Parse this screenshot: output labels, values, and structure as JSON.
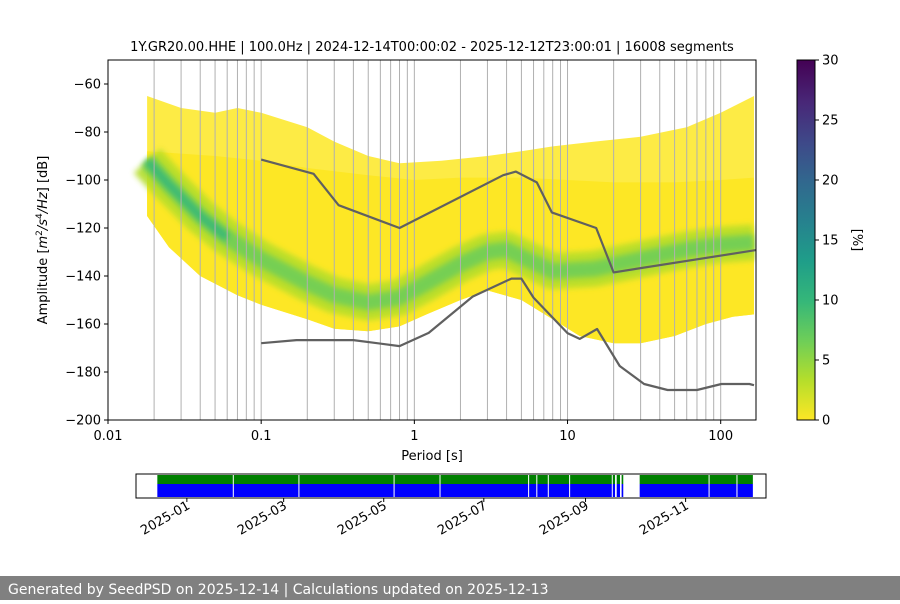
{
  "chart_data": [
    {
      "type": "heatmap",
      "title": "1Y.GR20.00.HHE | 100.0Hz | 2024-12-14T00:00:02 - 2025-12-12T23:00:01 | 16008 segments",
      "xlabel": "Period [s]",
      "ylabel": "Amplitude [m²/s⁴/Hz] [dB]",
      "x_scale": "log",
      "xlim": [
        0.01,
        170
      ],
      "ylim": [
        -200,
        -50
      ],
      "x_ticks": [
        0.01,
        0.1,
        1,
        10,
        100
      ],
      "x_tick_labels": [
        "0.01",
        "0.1",
        "1",
        "10",
        "100"
      ],
      "y_ticks": [
        -200,
        -180,
        -160,
        -140,
        -120,
        -100,
        -80,
        -60
      ],
      "y_tick_labels": [
        "−200",
        "−180",
        "−160",
        "−140",
        "−120",
        "−100",
        "−80",
        "−60"
      ],
      "grid": "vertical lines at log-spaced period bins",
      "grid_periods": [
        0.02,
        0.03,
        0.04,
        0.05,
        0.06,
        0.07,
        0.08,
        0.09,
        0.1,
        0.2,
        0.3,
        0.4,
        0.5,
        0.6,
        0.7,
        0.8,
        0.9,
        1,
        2,
        3,
        4,
        5,
        6,
        7,
        8,
        9,
        10,
        20,
        30,
        40,
        50,
        60,
        70,
        80,
        90,
        100,
        200
      ],
      "grid_color": "#b0b0b0",
      "heatmap": {
        "envelope_upper": [
          [
            0.018,
            -65
          ],
          [
            0.03,
            -70
          ],
          [
            0.05,
            -72
          ],
          [
            0.07,
            -70
          ],
          [
            0.1,
            -72
          ],
          [
            0.2,
            -78
          ],
          [
            0.3,
            -84
          ],
          [
            0.5,
            -90
          ],
          [
            0.8,
            -93
          ],
          [
            1.5,
            -92
          ],
          [
            3,
            -90
          ],
          [
            5,
            -88
          ],
          [
            8,
            -86
          ],
          [
            15,
            -84
          ],
          [
            30,
            -82
          ],
          [
            60,
            -78
          ],
          [
            100,
            -72
          ],
          [
            165,
            -65
          ]
        ],
        "envelope_lower": [
          [
            0.018,
            -115
          ],
          [
            0.025,
            -128
          ],
          [
            0.04,
            -140
          ],
          [
            0.07,
            -148
          ],
          [
            0.1,
            -152
          ],
          [
            0.2,
            -158
          ],
          [
            0.3,
            -162
          ],
          [
            0.5,
            -163
          ],
          [
            0.8,
            -161
          ],
          [
            1.2,
            -156
          ],
          [
            2,
            -150
          ],
          [
            3,
            -146
          ],
          [
            5,
            -150
          ],
          [
            8,
            -158
          ],
          [
            12,
            -165
          ],
          [
            20,
            -168
          ],
          [
            30,
            -168
          ],
          [
            50,
            -165
          ],
          [
            80,
            -160
          ],
          [
            120,
            -157
          ],
          [
            165,
            -156
          ]
        ],
        "solid_upper": [
          [
            0.018,
            -88
          ],
          [
            0.05,
            -90
          ],
          [
            0.1,
            -92
          ],
          [
            0.2,
            -95
          ],
          [
            0.5,
            -98
          ],
          [
            1,
            -100
          ],
          [
            2,
            -99
          ],
          [
            5,
            -99
          ],
          [
            10,
            -100
          ],
          [
            20,
            -101
          ],
          [
            50,
            -101
          ],
          [
            100,
            -100
          ],
          [
            165,
            -99
          ]
        ],
        "mode_curve": [
          [
            0.018,
            -92
          ],
          [
            0.025,
            -102
          ],
          [
            0.04,
            -115
          ],
          [
            0.06,
            -124
          ],
          [
            0.1,
            -133
          ],
          [
            0.2,
            -143
          ],
          [
            0.3,
            -148
          ],
          [
            0.5,
            -151
          ],
          [
            0.8,
            -149
          ],
          [
            1.2,
            -143
          ],
          [
            2,
            -135
          ],
          [
            3,
            -130
          ],
          [
            4,
            -129
          ],
          [
            5,
            -132
          ],
          [
            8,
            -138
          ],
          [
            15,
            -137
          ],
          [
            30,
            -133
          ],
          [
            60,
            -129
          ],
          [
            100,
            -127
          ],
          [
            165,
            -126
          ]
        ]
      },
      "colorbar": {
        "label": "[%]",
        "min": 0,
        "max": 30,
        "ticks": [
          0,
          5,
          10,
          15,
          20,
          25,
          30
        ],
        "colors": [
          "#fde725",
          "#b5de2b",
          "#6ece58",
          "#35b779",
          "#1f9e89",
          "#26828e",
          "#31688e",
          "#3e4989",
          "#482878",
          "#440154"
        ]
      },
      "series": [
        {
          "name": "NHNM",
          "color": "#606060",
          "points": [
            [
              0.1,
              -91.5
            ],
            [
              0.22,
              -97.4
            ],
            [
              0.32,
              -110.5
            ],
            [
              0.8,
              -120
            ],
            [
              3.8,
              -98
            ],
            [
              4.6,
              -96.5
            ],
            [
              6.3,
              -101
            ],
            [
              7.9,
              -113.5
            ],
            [
              15.4,
              -120
            ],
            [
              20,
              -138.5
            ],
            [
              354.8,
              -126
            ]
          ]
        },
        {
          "name": "NLNM",
          "color": "#606060",
          "points": [
            [
              0.1,
              -168
            ],
            [
              0.17,
              -166.7
            ],
            [
              0.4,
              -166.7
            ],
            [
              0.8,
              -169.2
            ],
            [
              1.24,
              -163.7
            ],
            [
              2.4,
              -148.6
            ],
            [
              4.3,
              -141.1
            ],
            [
              5,
              -141.1
            ],
            [
              6,
              -149
            ],
            [
              10,
              -163.8
            ],
            [
              12,
              -166.2
            ],
            [
              15.6,
              -162.1
            ],
            [
              21.9,
              -177.5
            ],
            [
              31.6,
              -185
            ],
            [
              45,
              -187.5
            ],
            [
              70,
              -187.5
            ],
            [
              101,
              -185
            ],
            [
              154,
              -185
            ],
            [
              165,
              -185.5
            ]
          ]
        }
      ]
    },
    {
      "type": "timeline",
      "x_tick_labels": [
        "2025-01",
        "2025-03",
        "2025-05",
        "2025-07",
        "2025-09",
        "2025-11"
      ],
      "series": [
        {
          "name": "",
          "color": "#008000",
          "row": "top",
          "segments": [
            [
              "2024-12-14",
              "2025-09-19"
            ],
            [
              "2025-09-20",
              "2025-09-22"
            ],
            [
              "2025-09-23",
              "2025-09-24"
            ],
            [
              "2025-10-04",
              "2025-12-12"
            ]
          ]
        },
        {
          "name": "",
          "color": "#0000ff",
          "row": "bottom",
          "segments": [
            [
              "2024-12-14",
              "2025-09-19"
            ],
            [
              "2025-09-20",
              "2025-09-22"
            ],
            [
              "2025-09-23",
              "2025-09-24"
            ],
            [
              "2025-10-04",
              "2025-12-12"
            ]
          ]
        }
      ],
      "gaps": [
        "2025-01-29",
        "2025-03-10",
        "2025-05-07",
        "2025-06-04",
        "2025-07-28",
        "2025-08-02",
        "2025-08-09",
        "2025-08-22",
        "2025-09-17",
        "2025-11-15",
        "2025-12-02"
      ]
    }
  ],
  "footer": {
    "text": "Generated by SeedPSD on 2025-12-14 | Calculations updated on 2025-12-13"
  }
}
